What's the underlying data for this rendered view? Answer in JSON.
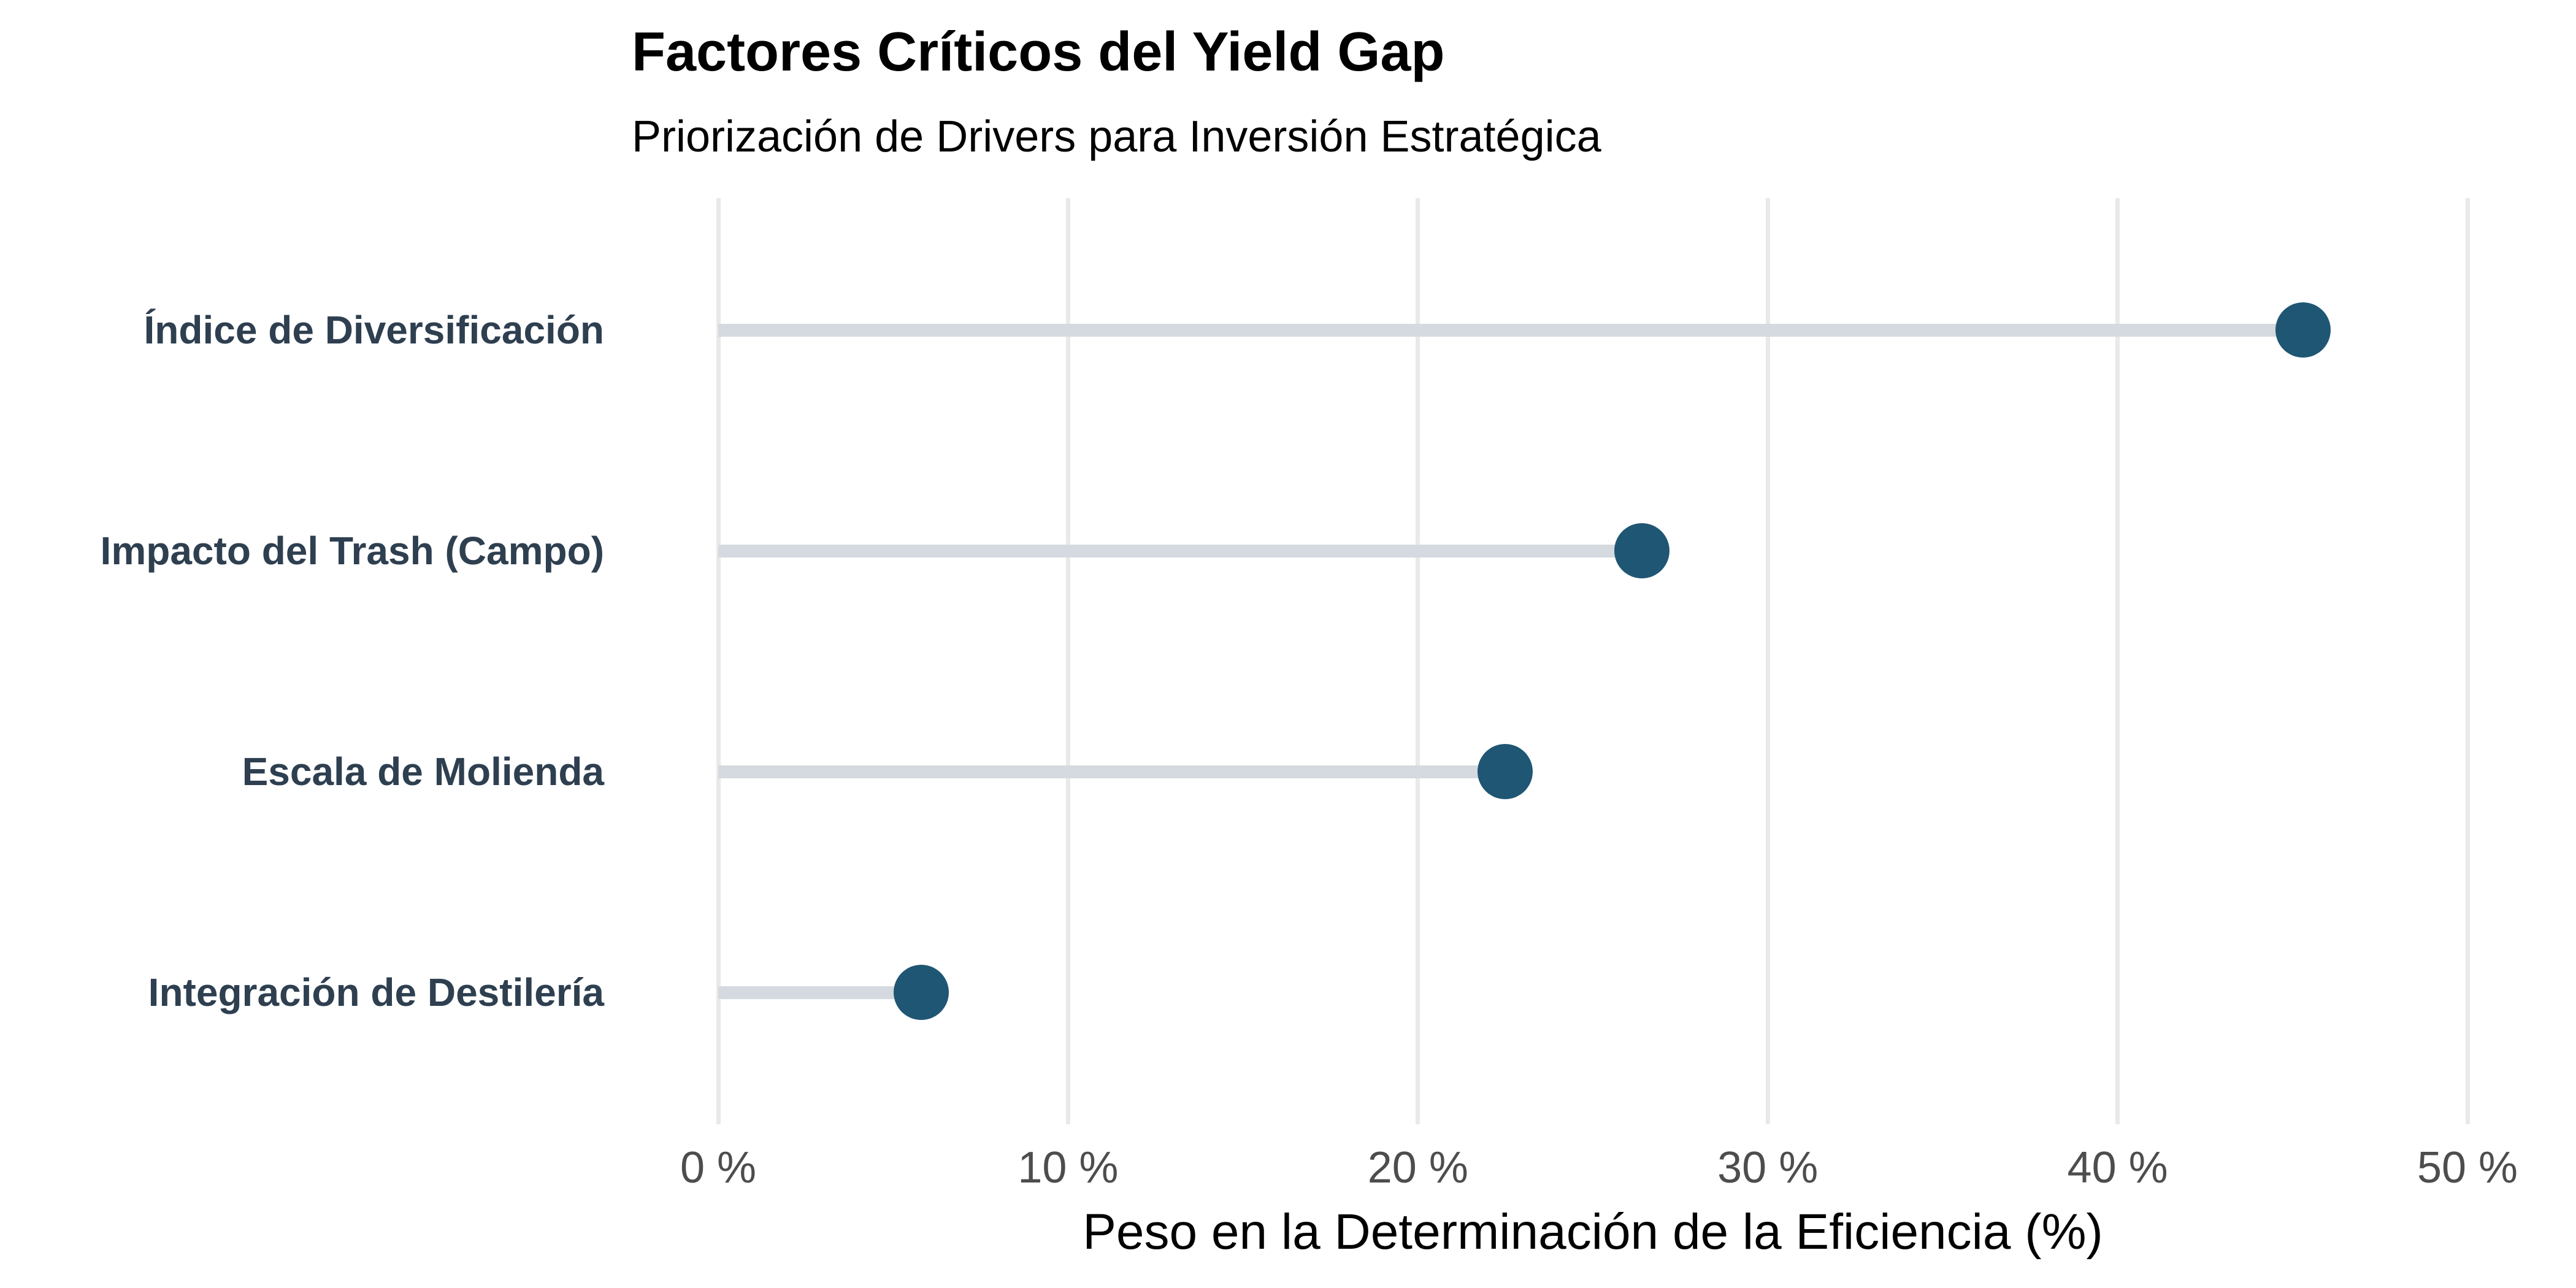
{
  "chart_data": {
    "type": "bar",
    "variant": "horizontal-lollipop",
    "title": "Factores Críticos del Yield Gap",
    "subtitle": "Priorización de Drivers para Inversión Estratégica",
    "xlabel": "Peso en la Determinación de la Eficiencia (%)",
    "ylabel": "",
    "categories": [
      "Índice de Diversificación",
      "Impacto del Trash (Campo)",
      "Escala de Molienda",
      "Integración de Destilería"
    ],
    "values": [
      45.3,
      26.4,
      22.5,
      5.8
    ],
    "unit": "%",
    "xlim": [
      0,
      50
    ],
    "x_ticks": [
      0,
      10,
      20,
      30,
      40,
      50
    ],
    "x_tick_labels": [
      "0 %",
      "10 %",
      "20 %",
      "30 %",
      "40 %",
      "50 %"
    ],
    "grid": "vertical-gridlines-only",
    "legend_position": "none",
    "colors": {
      "dot": "#1f5673",
      "stem": "#d5dae0",
      "gridline": "#e9e9e9",
      "category_label": "#2e3f50",
      "tick_label": "#4d4d4d",
      "title": "#000000"
    }
  }
}
